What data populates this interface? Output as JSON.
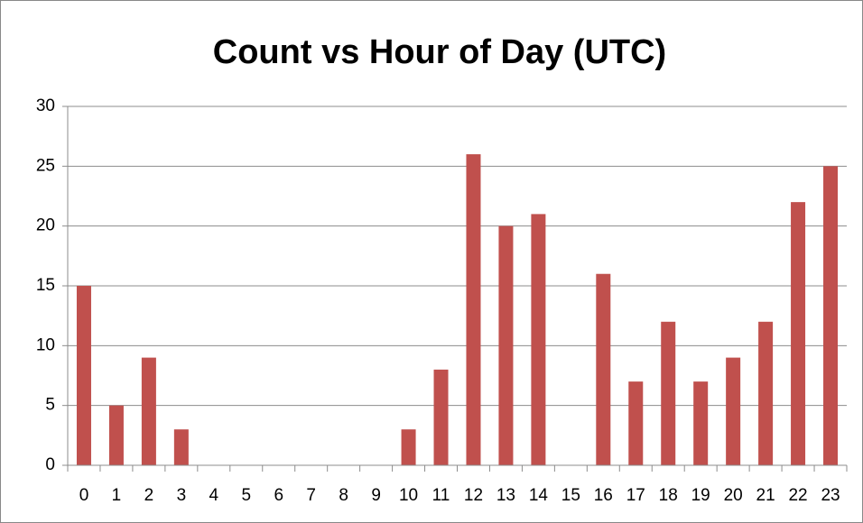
{
  "chart_data": {
    "type": "bar",
    "title": "Count vs Hour of Day (UTC)",
    "categories": [
      "0",
      "1",
      "2",
      "3",
      "4",
      "5",
      "6",
      "7",
      "8",
      "9",
      "10",
      "11",
      "12",
      "13",
      "14",
      "15",
      "16",
      "17",
      "18",
      "19",
      "20",
      "21",
      "22",
      "23"
    ],
    "values": [
      15,
      5,
      9,
      3,
      0,
      0,
      0,
      0,
      0,
      0,
      3,
      8,
      26,
      20,
      21,
      0,
      16,
      7,
      12,
      7,
      9,
      12,
      22,
      25
    ],
    "color": "#c0504d",
    "ylim": [
      0,
      30
    ],
    "yticks": [
      0,
      5,
      10,
      15,
      20,
      25,
      30
    ],
    "grid": true
  }
}
